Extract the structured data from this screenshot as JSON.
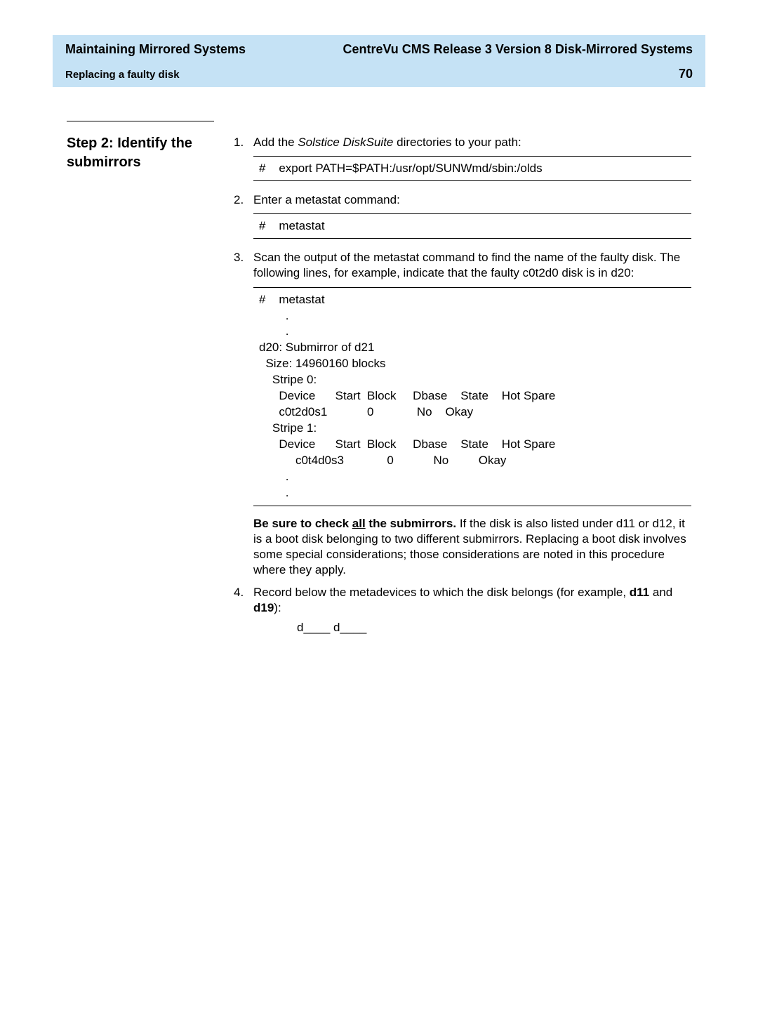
{
  "header": {
    "left_title": "Maintaining Mirrored Systems",
    "right_title": "CentreVu CMS Release 3 Version 8 Disk-Mirrored Systems",
    "sub_title": "Replacing a faulty disk",
    "page_number": "70"
  },
  "step": {
    "title": "Step 2: Identify the submirrors"
  },
  "items": {
    "item1": {
      "num": "1.",
      "pre": "Add the ",
      "italic": "Solstice DiskSuite",
      "post": " directories to your path:",
      "cmd": "#    export PATH=$PATH:/usr/opt/SUNWmd/sbin:/olds"
    },
    "item2": {
      "num": "2.",
      "text": "Enter a metastat    command:",
      "cmd": "#    metastat"
    },
    "item3": {
      "num": "3.",
      "text": "Scan the output of the metastat command to find the name of the faulty disk. The following lines, for example, indicate that the faulty c0t2d0 disk is in d20:",
      "output": "#    metastat\n        .\n        .\nd20: Submirror of d21\n  Size: 14960160 blocks\n    Stripe 0:\n      Device      Start  Block     Dbase    State    Hot Spare\n      c0t2d0s1            0             No    Okay\n    Stripe 1:\n      Device      Start  Block     Dbase    State    Hot Spare\n           c0t4d0s3             0            No         Okay\n        .\n        ."
    },
    "note": {
      "bold_pre": "Be sure to check ",
      "bold_underline": "all",
      "bold_post": " the submirrors.",
      "rest": " If the disk is also listed under d11 or d12, it is a boot disk belonging to two different submirrors. Replacing a boot disk involves some special considerations; those considerations are noted in this procedure where they apply."
    },
    "item4": {
      "num": "4.",
      "pre": "Record below the metadevices to which the disk belongs (for example, ",
      "b1": "d11",
      "mid": " and ",
      "b2": "d19",
      "post": "):",
      "record": "d____      d____"
    }
  }
}
